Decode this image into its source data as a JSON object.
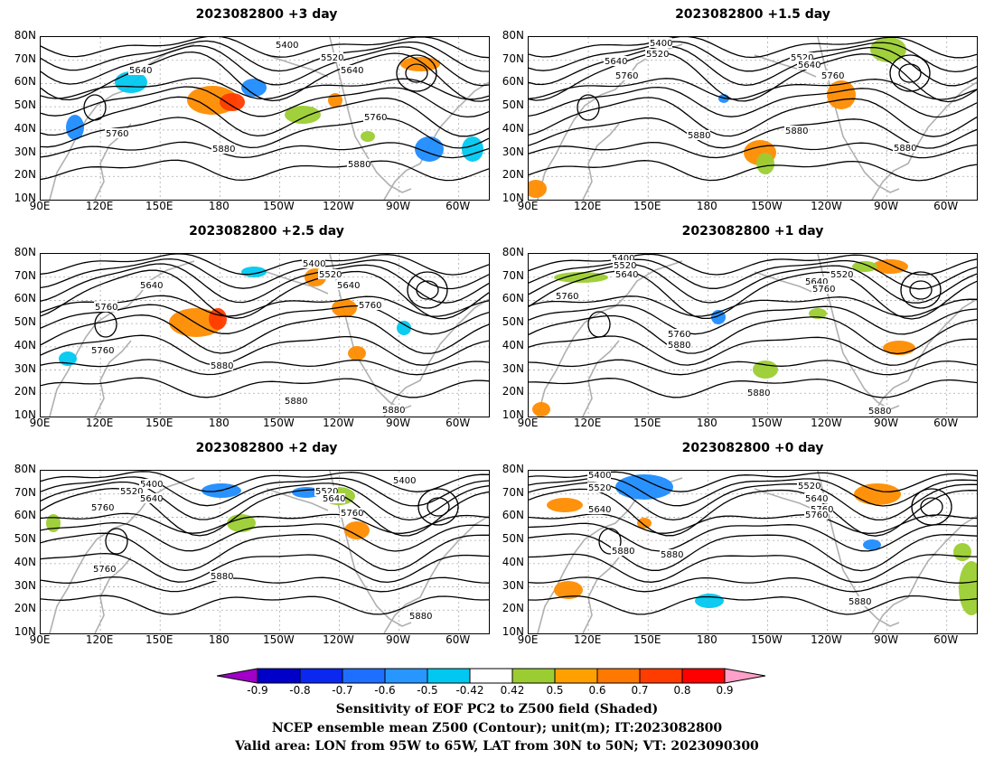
{
  "panels": [
    {
      "title": "2023082800 +3 day",
      "contour_labels": [
        "5400",
        "5520",
        "5640",
        "5640",
        "5760",
        "5760",
        "5880",
        "5880"
      ]
    },
    {
      "title": "2023082800 +1.5 day",
      "contour_labels": [
        "5400",
        "5520",
        "5520",
        "5640",
        "5640",
        "5760",
        "5760",
        "5880",
        "5880",
        "5880"
      ]
    },
    {
      "title": "2023082800 +2.5 day",
      "contour_labels": [
        "5400",
        "5520",
        "5640",
        "5640",
        "5760",
        "5760",
        "5760",
        "5880",
        "5880",
        "5880"
      ]
    },
    {
      "title": "2023082800 +1 day",
      "contour_labels": [
        "5400",
        "5520",
        "5520",
        "5640",
        "5640",
        "5760",
        "5760",
        "5760",
        "5880",
        "5880",
        "5880"
      ]
    },
    {
      "title": "2023082800 +2 day",
      "contour_labels": [
        "5400",
        "5400",
        "5520",
        "5520",
        "5640",
        "5640",
        "5760",
        "5760",
        "5760",
        "5880",
        "5880"
      ]
    },
    {
      "title": "2023082800 +0 day",
      "contour_labels": [
        "5400",
        "5520",
        "5520",
        "5640",
        "5640",
        "5760",
        "5760",
        "5880",
        "5880",
        "5880"
      ]
    }
  ],
  "axes": {
    "lat_labels": [
      "80N",
      "70N",
      "60N",
      "50N",
      "40N",
      "30N",
      "20N",
      "10N"
    ],
    "lon_labels": [
      "90E",
      "120E",
      "150E",
      "180",
      "150W",
      "120W",
      "90W",
      "60W"
    ]
  },
  "colorbar": {
    "labels": [
      "-0.9",
      "-0.8",
      "-0.7",
      "-0.6",
      "-0.5",
      "-0.42",
      "0.42",
      "0.5",
      "0.6",
      "0.7",
      "0.8",
      "0.9"
    ],
    "colors": [
      "#a000c8",
      "#0000c8",
      "#0a28f0",
      "#1e6eff",
      "#2896ff",
      "#00c8f0",
      "#ffffff",
      "#9bcd32",
      "#ffa000",
      "#ff7800",
      "#ff3c00",
      "#ff0000",
      "#ffa0c8"
    ]
  },
  "captions": [
    "Sensitivity of EOF PC2 to Z500 field (Shaded)",
    "NCEP ensemble mean Z500 (Contour); unit(m); IT:2023082800",
    "Valid area: LON from 95W to 65W, LAT from 30N to 50N; VT: 2023090300"
  ],
  "shading_colors": {
    "orange": "#ff8c00",
    "red": "#ff3c00",
    "green": "#9bcd32",
    "blue": "#1e8cff",
    "cyan": "#00c8f0"
  }
}
